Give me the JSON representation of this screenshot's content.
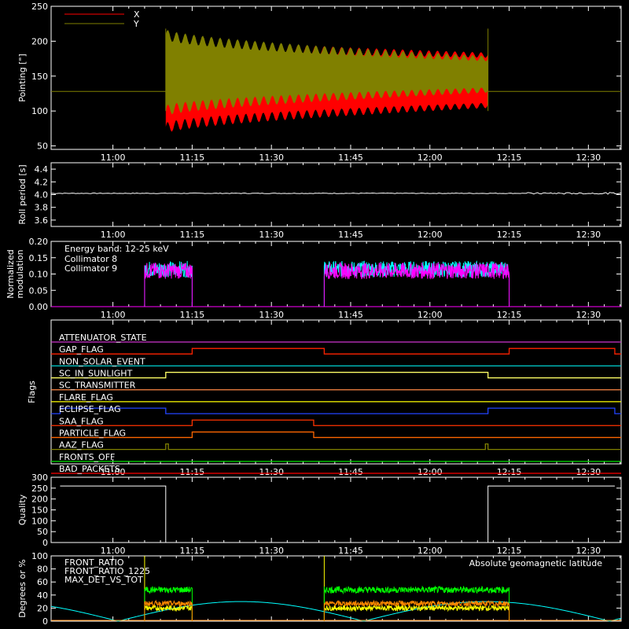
{
  "time_ticks": [
    "11:00",
    "11:15",
    "11:30",
    "11:45",
    "12:00",
    "12:15",
    "12:30"
  ],
  "chart_data": [
    {
      "type": "line",
      "ylabel": "Pointing [\"]",
      "yticks": [
        "50",
        "100",
        "150",
        "200",
        "250"
      ],
      "ylim": [
        45,
        250
      ],
      "series": [
        {
          "name": "X",
          "color": "#ff0000",
          "baseline": 128,
          "active_span": [
            "11:10",
            "12:11"
          ],
          "envelope_start": {
            "min": 75,
            "max": 200
          },
          "envelope_end": {
            "min": 108,
            "max": 180
          }
        },
        {
          "name": "Y",
          "color": "#808000",
          "baseline": 128,
          "active_span": [
            "11:10",
            "12:11"
          ],
          "envelope_start": {
            "min": 100,
            "max": 210
          },
          "envelope_end": {
            "min": 130,
            "max": 175
          }
        }
      ]
    },
    {
      "type": "line",
      "ylabel": "Roll period [s]",
      "yticks": [
        "3.6",
        "3.8",
        "4.0",
        "4.2",
        "4.4"
      ],
      "ylim": [
        3.5,
        4.5
      ],
      "series": [
        {
          "name": "",
          "color": "#ffffff",
          "value": 4.02
        }
      ]
    },
    {
      "type": "line",
      "ylabel_lines": [
        "Normalized",
        "modulation"
      ],
      "yticks": [
        "0.00",
        "0.05",
        "0.10",
        "0.15",
        "0.20"
      ],
      "ylim": [
        0,
        0.2
      ],
      "annotation": "Energy band: 12-25 keV",
      "active_intervals": [
        [
          "11:06",
          "11:15"
        ],
        [
          "11:40",
          "12:15"
        ]
      ],
      "series": [
        {
          "name": "Collimator 8",
          "color": "#00ffff",
          "mean": 0.115
        },
        {
          "name": "Collimator 9",
          "color": "#ff00ff",
          "mean": 0.11
        }
      ]
    },
    {
      "type": "line",
      "ylabel": "Flags",
      "flags": [
        {
          "name": "ATTENUATOR_STATE",
          "color": "#cc33cc",
          "on": []
        },
        {
          "name": "GAP_FLAG",
          "color": "#ff2200",
          "on": [
            [
              "11:15",
              "11:40"
            ],
            [
              "12:15",
              "12:35"
            ]
          ]
        },
        {
          "name": "NON_SOLAR_EVENT",
          "color": "#00cccc",
          "on": []
        },
        {
          "name": "SC_IN_SUNLIGHT",
          "color": "#ffff66",
          "on": [
            [
              "11:10",
              "12:11"
            ]
          ]
        },
        {
          "name": "SC_TRANSMITTER",
          "color": "#ff8844",
          "on": []
        },
        {
          "name": "FLARE_FLAG",
          "color": "#ffff00",
          "on": []
        },
        {
          "name": "ECLIPSE_FLAG",
          "color": "#2244ff",
          "on": [
            [
              "10:50",
              "11:10"
            ],
            [
              "12:11",
              "12:35"
            ]
          ]
        },
        {
          "name": "SAA_FLAG",
          "color": "#ff3300",
          "on": [
            [
              "11:15",
              "11:38"
            ]
          ]
        },
        {
          "name": "PARTICLE_FLAG",
          "color": "#ff6600",
          "on": [
            [
              "11:15",
              "11:38"
            ]
          ]
        },
        {
          "name": "AAZ_FLAG",
          "color": "#808000",
          "on": [
            [
              "11:10",
              "11:10.5"
            ],
            [
              "12:10.5",
              "12:11"
            ]
          ]
        },
        {
          "name": "FRONTS_OFF",
          "color": "#00cc00",
          "on": []
        },
        {
          "name": "BAD_PACKETS",
          "color": "#ff0000",
          "on": []
        }
      ]
    },
    {
      "type": "line",
      "ylabel": "Quality",
      "yticks": [
        "0",
        "50",
        "100",
        "150",
        "200",
        "250",
        "300"
      ],
      "ylim": [
        0,
        300
      ],
      "series": [
        {
          "name": "",
          "color": "#ffffff",
          "points": [
            [
              "10:50",
              260
            ],
            [
              "11:10",
              260
            ],
            [
              "11:10",
              0
            ],
            [
              "12:11",
              0
            ],
            [
              "12:11",
              260
            ],
            [
              "12:35",
              260
            ]
          ]
        }
      ]
    },
    {
      "type": "line",
      "ylabel": "Degrees or %",
      "yticks": [
        "0",
        "20",
        "40",
        "60",
        "80",
        "100"
      ],
      "ylim": [
        0,
        100
      ],
      "annotation": "Absolute geomagnetic latitude",
      "annotation_color": "#00ffff",
      "active_intervals": [
        [
          "11:06",
          "11:15"
        ],
        [
          "11:40",
          "12:15"
        ]
      ],
      "series": [
        {
          "name": "FRONT_RATIO",
          "color": "#ffff00",
          "mean": 20
        },
        {
          "name": "FRONT_RATIO_1225",
          "color": "#00ff00",
          "mean": 48
        },
        {
          "name": "MAX_DET_VS_TOT",
          "color": "#ff8800",
          "mean": 27
        },
        {
          "name": "",
          "color": "#00ffff",
          "peaks": 30
        }
      ]
    }
  ]
}
